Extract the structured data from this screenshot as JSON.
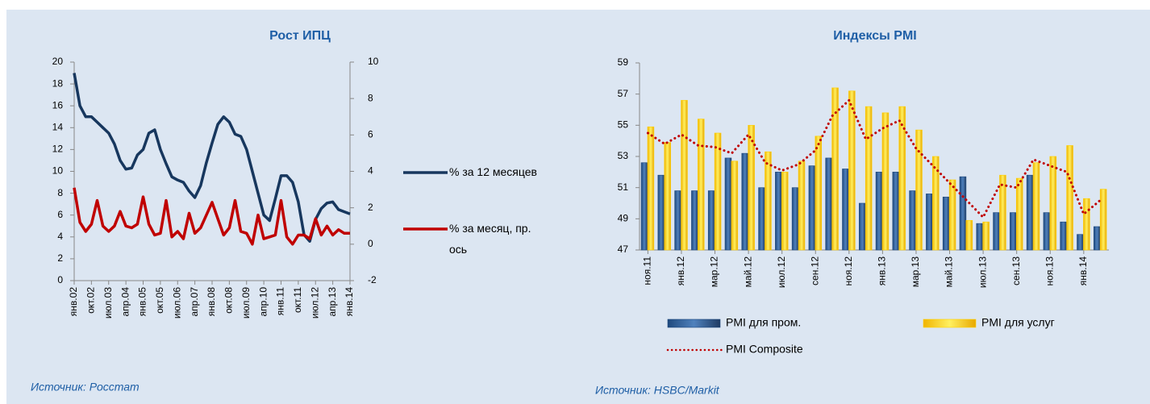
{
  "chart_data": [
    {
      "type": "line",
      "title": "Рост ИПЦ",
      "source": "Источник: Росстат",
      "legend": "right",
      "categories": [
        "янв.02",
        null,
        null,
        "окт.02",
        null,
        null,
        "июл.03",
        null,
        null,
        "апр.04",
        null,
        null,
        "янв.05",
        null,
        null,
        "окт.05",
        null,
        null,
        "июл.06",
        null,
        null,
        "апр.07",
        null,
        null,
        "янв.08",
        null,
        null,
        "окт.08",
        null,
        null,
        "июл.09",
        null,
        null,
        "апр.10",
        null,
        null,
        "янв.11",
        null,
        null,
        "окт.11",
        null,
        null,
        "июл.12",
        null,
        null,
        "апр.13",
        null,
        null,
        "янв.14"
      ],
      "series": [
        {
          "name": "% за 12 месяцев",
          "color": "#17375e",
          "values": [
            19,
            16,
            15,
            15,
            14.5,
            14,
            13.5,
            12.5,
            11,
            10.2,
            10.3,
            11.5,
            12,
            13.5,
            13.8,
            12,
            10.7,
            9.5,
            9.2,
            9,
            8.2,
            7.6,
            8.7,
            10.8,
            12.6,
            14.3,
            15,
            14.5,
            13.4,
            13.2,
            12,
            10,
            8,
            6,
            5.5,
            7.5,
            9.6,
            9.6,
            9,
            7.2,
            4.2,
            3.6,
            5.6,
            6.6,
            7.1,
            7.2,
            6.5,
            6.3,
            6.1
          ]
        },
        {
          "name": "% за месяц, пр. ось",
          "color": "#c00000",
          "axis": "y2",
          "values": [
            3.1,
            1.2,
            0.7,
            1.1,
            2.4,
            1.0,
            0.7,
            1.0,
            1.8,
            1.0,
            0.9,
            1.1,
            2.6,
            1.1,
            0.5,
            0.6,
            2.4,
            0.4,
            0.7,
            0.3,
            1.7,
            0.6,
            0.9,
            1.6,
            2.3,
            1.4,
            0.5,
            0.9,
            2.4,
            0.7,
            0.6,
            0.0,
            1.6,
            0.3,
            0.4,
            0.5,
            2.4,
            0.4,
            0.0,
            0.5,
            0.5,
            0.3,
            1.4,
            0.5,
            1.0,
            0.5,
            0.8,
            0.6,
            0.6
          ]
        }
      ],
      "ylim": [
        0,
        20
      ],
      "yticks": [
        0,
        2,
        4,
        6,
        8,
        10,
        12,
        14,
        16,
        18,
        20
      ],
      "y2lim": [
        -2,
        10
      ],
      "y2ticks": [
        -2,
        0,
        2,
        4,
        6,
        8,
        10
      ],
      "grid": false
    },
    {
      "type": "bar",
      "title": "Индексы PMI",
      "source": "Источник: HSBC/Markit",
      "legend": "bottom",
      "categories": [
        "ноя.11",
        null,
        "янв.12",
        null,
        "мар.12",
        null,
        "май.12",
        null,
        "июл.12",
        null,
        "сен.12",
        null,
        "ноя.12",
        null,
        "янв.13",
        null,
        "мар.13",
        null,
        "май.13",
        null,
        "июл.13",
        null,
        "сен.13",
        null,
        "ноя.13",
        null,
        "янв.14",
        null
      ],
      "series": [
        {
          "name": "PMI для пром.",
          "color": "#1f497d",
          "values": [
            52.6,
            51.8,
            50.8,
            50.8,
            50.8,
            52.9,
            53.2,
            51.0,
            52.0,
            51.0,
            52.4,
            52.9,
            52.2,
            50.0,
            52.0,
            52.0,
            50.8,
            50.6,
            50.4,
            51.7,
            48.7,
            49.4,
            49.4,
            51.8,
            49.4,
            48.8,
            48.0,
            48.5
          ]
        },
        {
          "name": "PMI для услуг",
          "color": "#ffd000",
          "values": [
            54.9,
            53.9,
            56.6,
            55.4,
            54.5,
            52.7,
            55.0,
            53.3,
            52.0,
            52.7,
            54.3,
            57.4,
            57.2,
            56.2,
            55.8,
            56.2,
            54.7,
            53.0,
            51.5,
            48.9,
            48.8,
            51.8,
            51.6,
            52.6,
            53.0,
            53.7,
            50.3,
            50.9
          ]
        },
        {
          "name": "PMI Composite",
          "color": "#c00000",
          "type": "line",
          "style": "dotted",
          "values": [
            54.5,
            53.8,
            54.4,
            53.7,
            53.6,
            53.2,
            54.4,
            52.6,
            52.1,
            52.5,
            53.4,
            55.6,
            56.6,
            54.1,
            54.8,
            55.3,
            53.5,
            52.4,
            51.3,
            50.2,
            49.1,
            51.2,
            51.0,
            52.8,
            52.4,
            52.0,
            49.3,
            50.2
          ]
        }
      ],
      "ylim": [
        47,
        59
      ],
      "yticks": [
        47,
        49,
        51,
        53,
        55,
        57,
        59
      ],
      "grid": false
    }
  ]
}
